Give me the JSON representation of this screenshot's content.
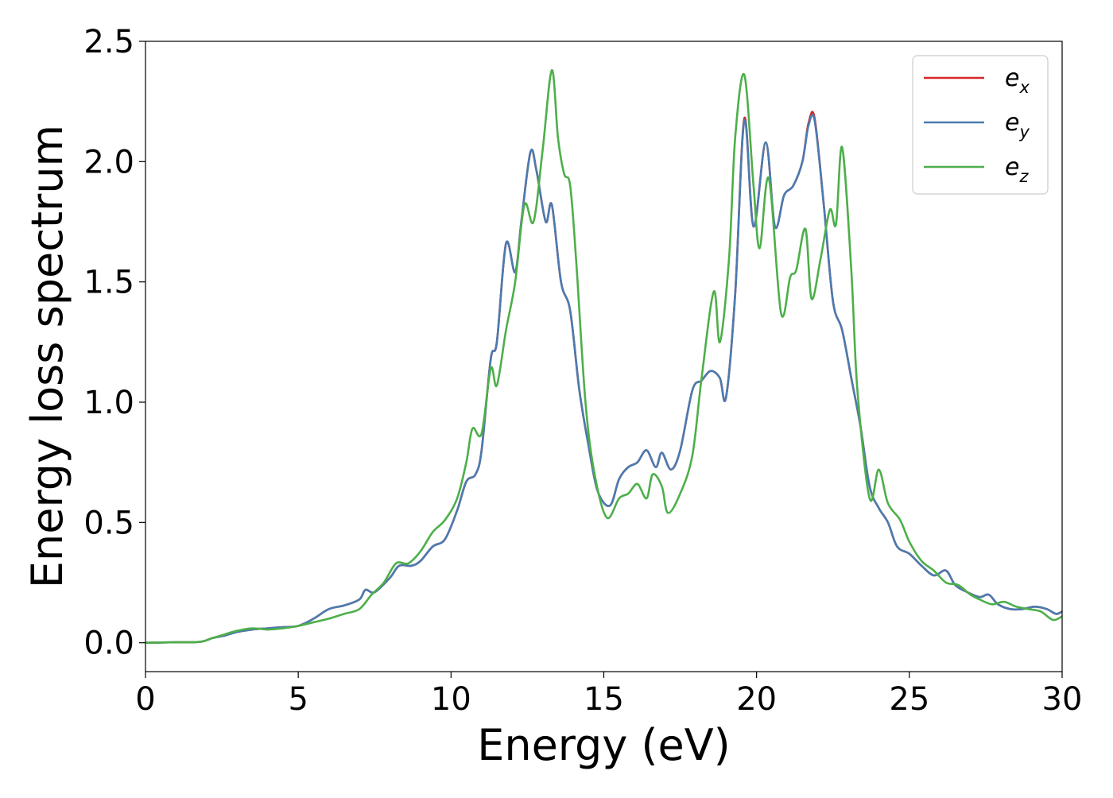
{
  "chart_data": {
    "type": "line",
    "title": "",
    "xlabel": "Energy (eV)",
    "ylabel": "Energy loss spectrum",
    "xlim": [
      0,
      30
    ],
    "ylim": [
      -0.12,
      2.5
    ],
    "xticks": [
      0,
      5,
      10,
      15,
      20,
      25,
      30
    ],
    "xtick_labels": [
      "0",
      "5",
      "10",
      "15",
      "20",
      "25",
      "30"
    ],
    "yticks": [
      0.0,
      0.5,
      1.0,
      1.5,
      2.0,
      2.5
    ],
    "ytick_labels": [
      "0.0",
      "0.5",
      "1.0",
      "1.5",
      "2.0",
      "2.5"
    ],
    "grid": false,
    "legend_position": "top-right",
    "series": [
      {
        "name": "e_x",
        "label_base": "e",
        "label_sub": "x",
        "color": "#d62728",
        "points": [
          [
            0,
            0.0
          ],
          [
            1,
            0.002
          ],
          [
            1.8,
            0.004
          ],
          [
            2.2,
            0.02
          ],
          [
            2.6,
            0.03
          ],
          [
            3,
            0.045
          ],
          [
            3.5,
            0.055
          ],
          [
            4,
            0.06
          ],
          [
            4.5,
            0.065
          ],
          [
            5,
            0.07
          ],
          [
            5.5,
            0.1
          ],
          [
            6,
            0.14
          ],
          [
            6.5,
            0.155
          ],
          [
            7,
            0.18
          ],
          [
            7.2,
            0.22
          ],
          [
            7.5,
            0.21
          ],
          [
            8,
            0.27
          ],
          [
            8.3,
            0.32
          ],
          [
            8.7,
            0.32
          ],
          [
            9,
            0.34
          ],
          [
            9.4,
            0.4
          ],
          [
            9.8,
            0.43
          ],
          [
            10.2,
            0.55
          ],
          [
            10.5,
            0.67
          ],
          [
            10.8,
            0.7
          ],
          [
            11,
            0.8
          ],
          [
            11.3,
            1.18
          ],
          [
            11.5,
            1.25
          ],
          [
            11.8,
            1.66
          ],
          [
            12.1,
            1.54
          ],
          [
            12.3,
            1.75
          ],
          [
            12.6,
            2.04
          ],
          [
            12.8,
            1.96
          ],
          [
            13.1,
            1.75
          ],
          [
            13.3,
            1.82
          ],
          [
            13.6,
            1.5
          ],
          [
            13.9,
            1.38
          ],
          [
            14.2,
            1.05
          ],
          [
            14.5,
            0.82
          ],
          [
            14.8,
            0.63
          ],
          [
            15.2,
            0.57
          ],
          [
            15.5,
            0.68
          ],
          [
            15.8,
            0.73
          ],
          [
            16.1,
            0.75
          ],
          [
            16.4,
            0.8
          ],
          [
            16.7,
            0.73
          ],
          [
            16.9,
            0.79
          ],
          [
            17.2,
            0.72
          ],
          [
            17.5,
            0.8
          ],
          [
            17.9,
            1.05
          ],
          [
            18.2,
            1.09
          ],
          [
            18.5,
            1.13
          ],
          [
            18.8,
            1.1
          ],
          [
            19,
            1.02
          ],
          [
            19.3,
            1.45
          ],
          [
            19.6,
            2.18
          ],
          [
            19.9,
            1.73
          ],
          [
            20.3,
            2.08
          ],
          [
            20.6,
            1.73
          ],
          [
            20.9,
            1.86
          ],
          [
            21.2,
            1.9
          ],
          [
            21.5,
            2.0
          ],
          [
            21.7,
            2.16
          ],
          [
            21.9,
            2.18
          ],
          [
            22.2,
            1.82
          ],
          [
            22.5,
            1.42
          ],
          [
            22.8,
            1.3
          ],
          [
            23.1,
            1.1
          ],
          [
            23.4,
            0.9
          ],
          [
            23.7,
            0.65
          ],
          [
            24,
            0.56
          ],
          [
            24.3,
            0.5
          ],
          [
            24.6,
            0.4
          ],
          [
            25,
            0.37
          ],
          [
            25.4,
            0.32
          ],
          [
            25.8,
            0.28
          ],
          [
            26.2,
            0.3
          ],
          [
            26.5,
            0.24
          ],
          [
            26.9,
            0.21
          ],
          [
            27.3,
            0.19
          ],
          [
            27.6,
            0.2
          ],
          [
            27.9,
            0.16
          ],
          [
            28.3,
            0.14
          ],
          [
            28.7,
            0.14
          ],
          [
            29.1,
            0.15
          ],
          [
            29.5,
            0.14
          ],
          [
            29.8,
            0.12
          ],
          [
            30,
            0.13
          ]
        ]
      },
      {
        "name": "e_y",
        "label_base": "e",
        "label_sub": "y",
        "color": "#4a7bb0",
        "points": [
          [
            0,
            0.0
          ],
          [
            1,
            0.002
          ],
          [
            1.8,
            0.004
          ],
          [
            2.2,
            0.02
          ],
          [
            2.6,
            0.03
          ],
          [
            3,
            0.045
          ],
          [
            3.5,
            0.055
          ],
          [
            4,
            0.06
          ],
          [
            4.5,
            0.065
          ],
          [
            5,
            0.07
          ],
          [
            5.5,
            0.1
          ],
          [
            6,
            0.14
          ],
          [
            6.5,
            0.155
          ],
          [
            7,
            0.18
          ],
          [
            7.2,
            0.22
          ],
          [
            7.5,
            0.21
          ],
          [
            8,
            0.27
          ],
          [
            8.3,
            0.32
          ],
          [
            8.7,
            0.32
          ],
          [
            9,
            0.34
          ],
          [
            9.4,
            0.4
          ],
          [
            9.8,
            0.43
          ],
          [
            10.2,
            0.55
          ],
          [
            10.5,
            0.67
          ],
          [
            10.8,
            0.7
          ],
          [
            11,
            0.8
          ],
          [
            11.3,
            1.18
          ],
          [
            11.5,
            1.25
          ],
          [
            11.8,
            1.66
          ],
          [
            12.1,
            1.54
          ],
          [
            12.3,
            1.75
          ],
          [
            12.6,
            2.04
          ],
          [
            12.8,
            1.96
          ],
          [
            13.1,
            1.75
          ],
          [
            13.3,
            1.82
          ],
          [
            13.6,
            1.5
          ],
          [
            13.9,
            1.38
          ],
          [
            14.2,
            1.05
          ],
          [
            14.5,
            0.82
          ],
          [
            14.8,
            0.63
          ],
          [
            15.2,
            0.57
          ],
          [
            15.5,
            0.68
          ],
          [
            15.8,
            0.73
          ],
          [
            16.1,
            0.75
          ],
          [
            16.4,
            0.8
          ],
          [
            16.7,
            0.73
          ],
          [
            16.9,
            0.79
          ],
          [
            17.2,
            0.72
          ],
          [
            17.5,
            0.8
          ],
          [
            17.9,
            1.05
          ],
          [
            18.2,
            1.09
          ],
          [
            18.5,
            1.13
          ],
          [
            18.8,
            1.1
          ],
          [
            19,
            1.02
          ],
          [
            19.3,
            1.45
          ],
          [
            19.6,
            2.17
          ],
          [
            19.9,
            1.73
          ],
          [
            20.3,
            2.08
          ],
          [
            20.6,
            1.73
          ],
          [
            20.9,
            1.86
          ],
          [
            21.2,
            1.9
          ],
          [
            21.5,
            2.0
          ],
          [
            21.7,
            2.15
          ],
          [
            21.9,
            2.17
          ],
          [
            22.2,
            1.82
          ],
          [
            22.5,
            1.42
          ],
          [
            22.8,
            1.3
          ],
          [
            23.1,
            1.1
          ],
          [
            23.4,
            0.9
          ],
          [
            23.7,
            0.65
          ],
          [
            24,
            0.56
          ],
          [
            24.3,
            0.5
          ],
          [
            24.6,
            0.4
          ],
          [
            25,
            0.37
          ],
          [
            25.4,
            0.32
          ],
          [
            25.8,
            0.28
          ],
          [
            26.2,
            0.3
          ],
          [
            26.5,
            0.24
          ],
          [
            26.9,
            0.21
          ],
          [
            27.3,
            0.19
          ],
          [
            27.6,
            0.2
          ],
          [
            27.9,
            0.16
          ],
          [
            28.3,
            0.14
          ],
          [
            28.7,
            0.14
          ],
          [
            29.1,
            0.15
          ],
          [
            29.5,
            0.14
          ],
          [
            29.8,
            0.12
          ],
          [
            30,
            0.13
          ]
        ]
      },
      {
        "name": "e_z",
        "label_base": "e",
        "label_sub": "z",
        "color": "#4daf4a",
        "points": [
          [
            0,
            0.0
          ],
          [
            1,
            0.002
          ],
          [
            1.8,
            0.004
          ],
          [
            2.2,
            0.02
          ],
          [
            2.6,
            0.035
          ],
          [
            3,
            0.05
          ],
          [
            3.5,
            0.06
          ],
          [
            4,
            0.055
          ],
          [
            4.5,
            0.06
          ],
          [
            5,
            0.07
          ],
          [
            5.5,
            0.085
          ],
          [
            6,
            0.1
          ],
          [
            6.5,
            0.12
          ],
          [
            7,
            0.14
          ],
          [
            7.4,
            0.2
          ],
          [
            7.8,
            0.25
          ],
          [
            8.2,
            0.33
          ],
          [
            8.6,
            0.33
          ],
          [
            9,
            0.38
          ],
          [
            9.4,
            0.46
          ],
          [
            9.8,
            0.51
          ],
          [
            10.2,
            0.6
          ],
          [
            10.5,
            0.75
          ],
          [
            10.7,
            0.89
          ],
          [
            11,
            0.87
          ],
          [
            11.3,
            1.14
          ],
          [
            11.5,
            1.07
          ],
          [
            11.8,
            1.3
          ],
          [
            12.1,
            1.5
          ],
          [
            12.4,
            1.82
          ],
          [
            12.7,
            1.75
          ],
          [
            13,
            2.05
          ],
          [
            13.3,
            2.38
          ],
          [
            13.5,
            2.1
          ],
          [
            13.7,
            1.95
          ],
          [
            13.9,
            1.9
          ],
          [
            14.1,
            1.58
          ],
          [
            14.4,
            1.0
          ],
          [
            14.7,
            0.7
          ],
          [
            15.1,
            0.52
          ],
          [
            15.5,
            0.6
          ],
          [
            15.8,
            0.62
          ],
          [
            16.1,
            0.66
          ],
          [
            16.4,
            0.6
          ],
          [
            16.6,
            0.7
          ],
          [
            16.9,
            0.65
          ],
          [
            17.1,
            0.54
          ],
          [
            17.5,
            0.62
          ],
          [
            17.9,
            0.78
          ],
          [
            18.2,
            1.1
          ],
          [
            18.6,
            1.46
          ],
          [
            18.8,
            1.25
          ],
          [
            19.1,
            1.6
          ],
          [
            19.3,
            2.1
          ],
          [
            19.6,
            2.36
          ],
          [
            19.9,
            1.9
          ],
          [
            20.1,
            1.64
          ],
          [
            20.4,
            1.93
          ],
          [
            20.8,
            1.37
          ],
          [
            21.1,
            1.52
          ],
          [
            21.3,
            1.55
          ],
          [
            21.6,
            1.72
          ],
          [
            21.8,
            1.43
          ],
          [
            22.1,
            1.6
          ],
          [
            22.4,
            1.8
          ],
          [
            22.6,
            1.74
          ],
          [
            22.8,
            2.06
          ],
          [
            23.1,
            1.55
          ],
          [
            23.3,
            1.05
          ],
          [
            23.7,
            0.6
          ],
          [
            24,
            0.72
          ],
          [
            24.3,
            0.58
          ],
          [
            24.7,
            0.51
          ],
          [
            25,
            0.42
          ],
          [
            25.4,
            0.34
          ],
          [
            25.8,
            0.3
          ],
          [
            26.2,
            0.25
          ],
          [
            26.6,
            0.24
          ],
          [
            27,
            0.2
          ],
          [
            27.3,
            0.18
          ],
          [
            27.7,
            0.16
          ],
          [
            28.1,
            0.17
          ],
          [
            28.5,
            0.15
          ],
          [
            28.9,
            0.14
          ],
          [
            29.3,
            0.13
          ],
          [
            29.7,
            0.095
          ],
          [
            30,
            0.11
          ]
        ]
      }
    ]
  }
}
